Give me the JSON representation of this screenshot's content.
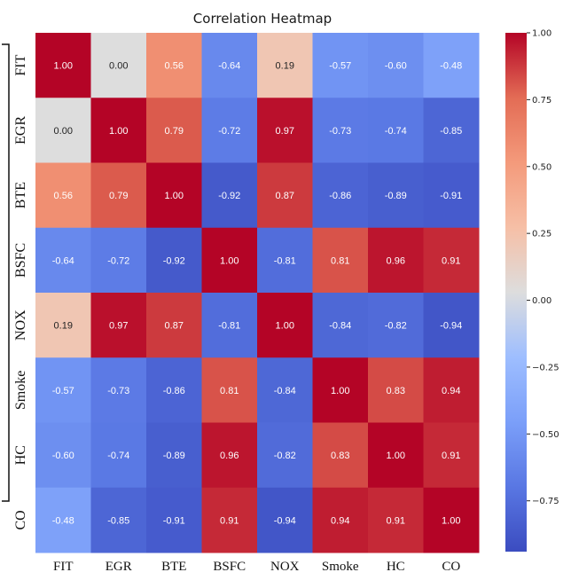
{
  "chart_data": {
    "type": "heatmap",
    "title": "Correlation Heatmap",
    "rows": [
      "FIT",
      "EGR",
      "BTE",
      "BSFC",
      "NOX",
      "Smoke",
      "HC",
      "CO"
    ],
    "columns": [
      "FIT",
      "EGR",
      "BTE",
      "BSFC",
      "NOX",
      "Smoke",
      "HC",
      "CO"
    ],
    "values": [
      [
        1.0,
        0.0,
        0.56,
        -0.64,
        0.19,
        -0.57,
        -0.6,
        -0.48
      ],
      [
        0.0,
        1.0,
        0.79,
        -0.72,
        0.97,
        -0.73,
        -0.74,
        -0.85
      ],
      [
        0.56,
        0.79,
        1.0,
        -0.92,
        0.87,
        -0.86,
        -0.89,
        -0.91
      ],
      [
        -0.64,
        -0.72,
        -0.92,
        1.0,
        -0.81,
        0.81,
        0.96,
        0.91
      ],
      [
        0.19,
        0.97,
        0.87,
        -0.81,
        1.0,
        -0.84,
        -0.82,
        -0.94
      ],
      [
        -0.57,
        -0.73,
        -0.86,
        0.81,
        -0.84,
        1.0,
        0.83,
        0.94
      ],
      [
        -0.6,
        -0.74,
        -0.89,
        0.96,
        -0.82,
        0.83,
        1.0,
        0.91
      ],
      [
        -0.48,
        -0.85,
        -0.91,
        0.91,
        -0.94,
        0.94,
        0.91,
        1.0
      ]
    ],
    "value_range": [
      -0.94,
      1.0
    ],
    "colormap": "coolwarm",
    "colorbar_ticks": [
      1.0,
      0.75,
      0.5,
      0.25,
      0.0,
      -0.25,
      -0.5,
      -0.75
    ],
    "colorbar_tick_labels": [
      "1.00",
      "0.75",
      "0.50",
      "0.25",
      "0.00",
      "−0.25",
      "−0.50",
      "−0.75"
    ],
    "colors": {
      "low": "#3b4cc0",
      "mid": "#dddddd",
      "high": "#b40426"
    }
  }
}
